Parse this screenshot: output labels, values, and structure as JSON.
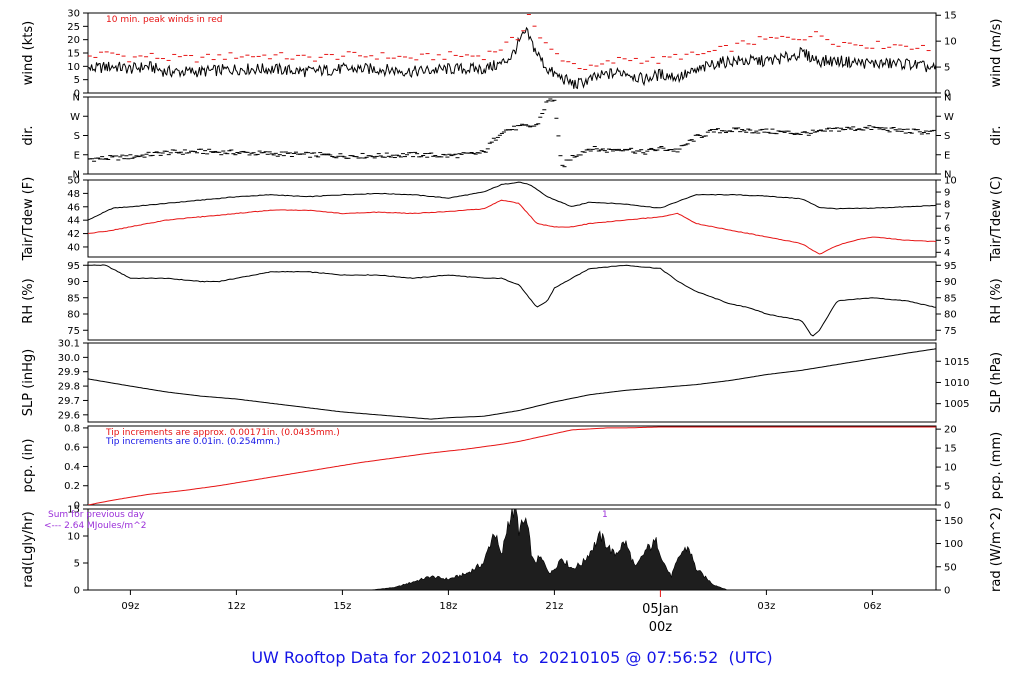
{
  "footer": {
    "prefix": "UW Rooftop Data for",
    "start": "20210104",
    "to": "to",
    "end": "20210105",
    "at": "@",
    "time": "07:56:52",
    "tz": "(UTC)"
  },
  "day_marker": {
    "date": "05Jan",
    "hour": "00z",
    "color": "#e61414"
  },
  "colors": {
    "black": "#000000",
    "red": "#e61414",
    "blue": "#1414e6",
    "purple": "#9b30d9"
  },
  "chart_data": [
    {
      "id": "wind",
      "type": "line",
      "ylabel": "wind (kts)",
      "ylabel_right": "wind (m/s)",
      "ylim": [
        0,
        30
      ],
      "yticks": [
        0,
        5,
        10,
        15,
        20,
        25,
        30
      ],
      "right_ticks": [
        0,
        5,
        10,
        15
      ],
      "right_factor": 0.5144,
      "annotation": {
        "text": "10 min. peak winds in red",
        "color": "#e61414"
      },
      "series": [
        {
          "color": "#000000",
          "style": "line",
          "x": [
            7.8,
            8.5,
            9.0,
            9.5,
            10.0,
            11.0,
            12.0,
            13.0,
            14.0,
            15.0,
            16.0,
            17.0,
            18.0,
            19.0,
            19.5,
            19.8,
            20.0,
            20.2,
            20.5,
            20.8,
            21.0,
            21.3,
            21.6,
            22.0,
            22.5,
            23.0,
            23.5,
            24.0,
            24.5,
            25.0,
            25.5,
            26.0,
            26.5,
            27.0,
            27.5,
            28.0,
            28.5,
            29.0,
            30.0,
            31.0,
            31.8
          ],
          "y": [
            9,
            10,
            9,
            10,
            8,
            8,
            9,
            9,
            8,
            9,
            9,
            8,
            9,
            9,
            11,
            14,
            19,
            23,
            15,
            9,
            7,
            5,
            3,
            5,
            7,
            8,
            5,
            7,
            6,
            8,
            11,
            12,
            12,
            12,
            13,
            15,
            12,
            12,
            11,
            11,
            9
          ]
        },
        {
          "color": "#e61414",
          "style": "dash",
          "x": [
            8.0,
            8.5,
            9.0,
            9.5,
            10.0,
            11.0,
            12.0,
            13.0,
            14.0,
            15.0,
            16.0,
            17.0,
            18.0,
            19.0,
            19.5,
            20.0,
            20.3,
            20.6,
            21.0,
            21.5,
            22.0,
            22.5,
            23.0,
            24.0,
            24.5,
            25.0,
            26.0,
            26.5,
            27.0,
            28.0,
            28.5,
            29.0,
            30.0,
            31.0,
            31.6
          ],
          "y": [
            14,
            15,
            13,
            14,
            13,
            13,
            14,
            14,
            13,
            14,
            14,
            13,
            14,
            14,
            17,
            21,
            30,
            20,
            15,
            11,
            9,
            11,
            13,
            12,
            14,
            14,
            17,
            19,
            20,
            21,
            22,
            19,
            18,
            18,
            16
          ]
        }
      ]
    },
    {
      "id": "dir",
      "type": "scatter",
      "ylabel": "dir.",
      "ylabel_right": "dir.",
      "ylim": [
        0,
        360
      ],
      "ytick_values": [
        0,
        90,
        180,
        270,
        360
      ],
      "ytick_labels": [
        "N",
        "E",
        "S",
        "W",
        "N"
      ],
      "series": [
        {
          "color": "#000000",
          "x": [
            7.8,
            8.5,
            9.0,
            9.5,
            10.0,
            11.0,
            12.0,
            13.0,
            14.0,
            15.0,
            16.0,
            17.0,
            18.0,
            18.5,
            19.0,
            19.5,
            19.8,
            20.0,
            20.5,
            20.8,
            21.0,
            21.2,
            21.5,
            22.0,
            22.5,
            23.0,
            23.5,
            24.0,
            24.5,
            25.0,
            25.5,
            26.0,
            27.0,
            28.0,
            28.5,
            29.0,
            30.0,
            31.0,
            31.8
          ],
          "y": [
            70,
            75,
            80,
            90,
            100,
            105,
            100,
            95,
            90,
            85,
            85,
            90,
            85,
            90,
            100,
            200,
            210,
            220,
            225,
            340,
            350,
            30,
            80,
            120,
            110,
            120,
            100,
            120,
            110,
            170,
            200,
            205,
            200,
            190,
            195,
            210,
            215,
            200,
            195
          ]
        }
      ]
    },
    {
      "id": "temp",
      "type": "line",
      "ylabel": "Tair/Tdew (F)",
      "ylabel_right": "Tair/Tdew (C)",
      "ylim": [
        38.5,
        50
      ],
      "yticks": [
        40,
        42,
        44,
        46,
        48,
        50
      ],
      "right_ticks": [
        4,
        5,
        6,
        7,
        8,
        9,
        10
      ],
      "series": [
        {
          "name": "Tair",
          "color": "#000000",
          "x": [
            7.8,
            8.5,
            9.0,
            10.0,
            11.0,
            12.0,
            13.0,
            14.0,
            15.0,
            16.0,
            17.0,
            18.0,
            19.0,
            19.5,
            20.0,
            20.3,
            20.8,
            21.5,
            22.0,
            23.0,
            24.0,
            25.0,
            26.0,
            27.0,
            28.0,
            28.5,
            29.0,
            30.0,
            31.0,
            31.8
          ],
          "y": [
            44.0,
            45.8,
            46.0,
            46.5,
            47.0,
            47.5,
            47.8,
            47.5,
            47.8,
            48.0,
            47.8,
            47.3,
            48.2,
            49.3,
            49.7,
            49.3,
            47.5,
            46.0,
            46.7,
            46.4,
            45.8,
            47.8,
            47.8,
            47.6,
            47.2,
            45.9,
            45.7,
            45.8,
            46.0,
            46.2
          ]
        },
        {
          "name": "Tdew",
          "color": "#e61414",
          "x": [
            7.8,
            8.5,
            9.0,
            10.0,
            11.0,
            12.0,
            13.0,
            14.0,
            15.0,
            16.0,
            17.0,
            18.0,
            19.0,
            19.5,
            20.0,
            20.5,
            21.0,
            21.5,
            22.0,
            23.0,
            24.0,
            24.5,
            25.0,
            26.0,
            27.0,
            28.0,
            28.5,
            29.0,
            29.5,
            30.0,
            31.0,
            31.8
          ],
          "y": [
            42.0,
            42.5,
            43.0,
            44.0,
            44.5,
            45.0,
            45.5,
            45.5,
            45.0,
            45.2,
            45.0,
            45.3,
            45.7,
            47.0,
            46.5,
            43.5,
            43.0,
            43.0,
            43.5,
            44.0,
            44.5,
            45.0,
            43.5,
            42.5,
            41.5,
            40.5,
            38.9,
            40.2,
            41.0,
            41.5,
            41.0,
            40.8
          ]
        }
      ]
    },
    {
      "id": "rh",
      "type": "line",
      "ylabel": "RH (%)",
      "ylabel_right": "RH (%)",
      "ylim": [
        72,
        96
      ],
      "yticks": [
        75,
        80,
        85,
        90,
        95
      ],
      "right_ticks": [
        75,
        80,
        85,
        90,
        95
      ],
      "series": [
        {
          "color": "#000000",
          "x": [
            7.8,
            8.3,
            9.0,
            10.0,
            11.0,
            11.5,
            12.0,
            13.0,
            14.0,
            15.0,
            16.0,
            17.0,
            18.0,
            19.0,
            19.5,
            20.0,
            20.5,
            20.8,
            21.0,
            21.5,
            22.0,
            23.0,
            24.0,
            24.5,
            25.0,
            25.5,
            26.0,
            26.5,
            27.0,
            27.5,
            28.0,
            28.3,
            28.5,
            29.0,
            30.0,
            31.0,
            31.8
          ],
          "y": [
            95,
            95,
            91,
            91,
            90,
            90,
            91,
            93,
            93,
            92,
            92,
            91,
            92,
            91,
            91,
            89,
            82,
            84,
            88,
            91,
            94,
            95,
            94,
            90,
            87,
            85,
            83,
            82,
            80,
            79,
            78,
            73,
            75,
            84,
            85,
            84,
            82
          ]
        }
      ]
    },
    {
      "id": "slp",
      "type": "line",
      "ylabel": "SLP (inHg)",
      "ylabel_right": "SLP (hPa)",
      "ylim": [
        29.55,
        30.1
      ],
      "yticks": [
        29.6,
        29.7,
        29.8,
        29.9,
        30.0,
        30.1
      ],
      "right_ticks": [
        1005,
        1010,
        1015
      ],
      "right_factor": 33.8639,
      "series": [
        {
          "color": "#000000",
          "x": [
            7.8,
            9.0,
            10.0,
            11.0,
            12.0,
            13.0,
            14.0,
            15.0,
            16.0,
            17.0,
            17.5,
            18.0,
            19.0,
            20.0,
            21.0,
            22.0,
            23.0,
            24.0,
            25.0,
            26.0,
            27.0,
            28.0,
            29.0,
            30.0,
            31.0,
            31.8
          ],
          "y": [
            29.85,
            29.8,
            29.76,
            29.73,
            29.71,
            29.68,
            29.65,
            29.62,
            29.6,
            29.58,
            29.57,
            29.58,
            29.59,
            29.63,
            29.69,
            29.74,
            29.77,
            29.79,
            29.81,
            29.84,
            29.88,
            29.91,
            29.95,
            29.99,
            30.03,
            30.06
          ]
        }
      ]
    },
    {
      "id": "pcp",
      "type": "line",
      "ylabel": "pcp. (in)",
      "ylabel_right": "pcp. (mm)",
      "ylim": [
        0,
        0.82
      ],
      "yticks": [
        0.0,
        0.2,
        0.4,
        0.6,
        0.8
      ],
      "right_ticks": [
        0,
        5,
        10,
        15,
        20
      ],
      "right_factor": 25.4,
      "annotations": [
        {
          "text": "Tip increments are approx. 0.00171in. (0.0435mm.)",
          "color": "#e61414"
        },
        {
          "text": "Tip increments are 0.01in. (0.254mm.)",
          "color": "#1414e6"
        }
      ],
      "series": [
        {
          "color": "#e61414",
          "x": [
            7.8,
            8.5,
            9.5,
            10.5,
            11.5,
            12.5,
            13.5,
            14.5,
            15.5,
            16.5,
            17.5,
            18.5,
            19.5,
            20.0,
            20.5,
            21.0,
            21.5,
            22.0,
            22.5,
            23.0,
            24.0,
            26.0,
            28.0,
            30.0,
            31.8
          ],
          "y": [
            0.0,
            0.05,
            0.11,
            0.15,
            0.2,
            0.26,
            0.32,
            0.38,
            0.44,
            0.49,
            0.54,
            0.58,
            0.63,
            0.66,
            0.7,
            0.74,
            0.78,
            0.79,
            0.8,
            0.8,
            0.81,
            0.81,
            0.81,
            0.81,
            0.81
          ]
        }
      ]
    },
    {
      "id": "rad",
      "type": "area",
      "ylabel": "rad(Lgly/hr)",
      "ylabel_right": "rad (W/m^2)",
      "ylim": [
        0,
        15
      ],
      "yticks": [
        0,
        5,
        10,
        15
      ],
      "right_ticks": [
        0,
        50,
        100,
        150
      ],
      "right_factor": 11.622,
      "annotations": [
        {
          "text": "Sum for previous day",
          "color": "#9b30d9"
        },
        {
          "text": "<--- 2.64 MJoules/m^2",
          "color": "#9b30d9"
        },
        {
          "text": "1",
          "color": "#9b30d9"
        }
      ],
      "series": [
        {
          "color": "#000000",
          "x": [
            15.8,
            16.5,
            17.0,
            17.5,
            18.0,
            18.5,
            19.0,
            19.3,
            19.5,
            19.7,
            19.9,
            20.0,
            20.2,
            20.4,
            20.6,
            20.9,
            21.2,
            21.5,
            21.8,
            22.0,
            22.3,
            22.7,
            23.0,
            23.3,
            23.6,
            23.9,
            24.1,
            24.3,
            24.6,
            24.8,
            25.0,
            25.5,
            25.9
          ],
          "y": [
            0,
            0.5,
            1.5,
            2.5,
            2.0,
            3.0,
            5.0,
            11.0,
            6.0,
            13.0,
            15.0,
            11.0,
            13.0,
            5.0,
            6.0,
            3.0,
            6.0,
            4.0,
            5.0,
            7.0,
            10.0,
            6.5,
            9.0,
            4.0,
            7.5,
            9.0,
            5.0,
            2.5,
            7.0,
            8.0,
            4.0,
            1.0,
            0
          ]
        }
      ]
    }
  ],
  "xaxis": {
    "range": [
      7.8,
      31.8
    ],
    "ticks": [
      9,
      12,
      15,
      18,
      21,
      27,
      30
    ],
    "labels": [
      "09z",
      "12z",
      "15z",
      "18z",
      "21z",
      "03z",
      "06z"
    ],
    "midnight": 24
  }
}
